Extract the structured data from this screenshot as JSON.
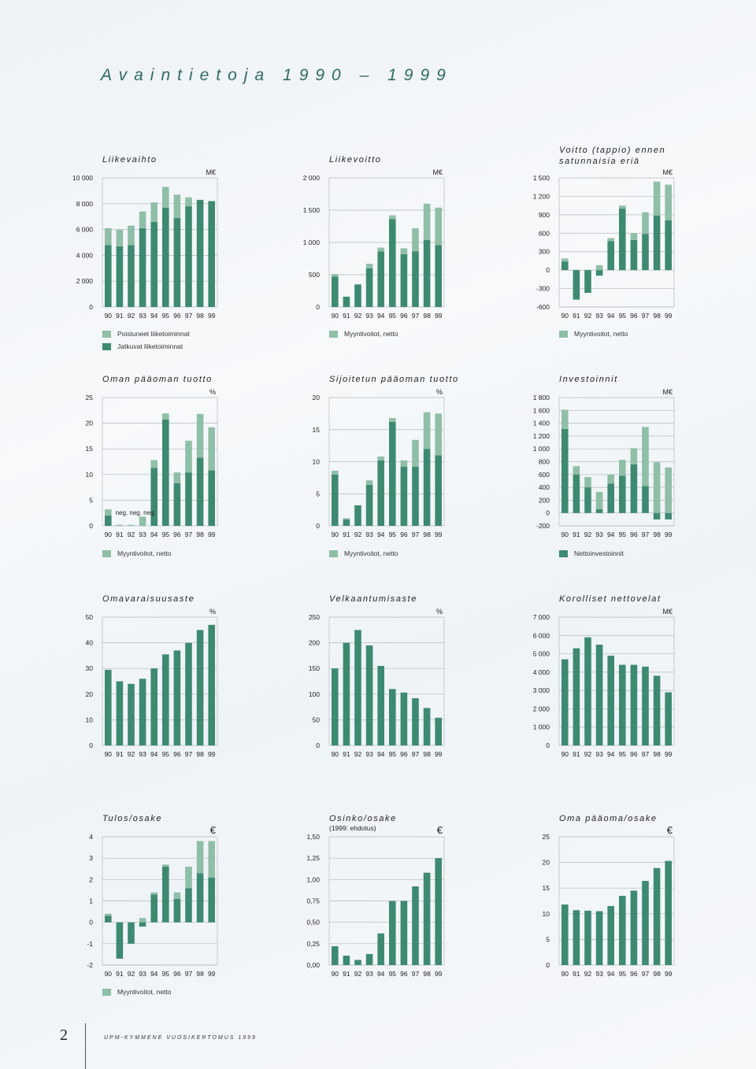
{
  "page": {
    "title": "Avaintietoja 1990 – 1999",
    "page_number": "2",
    "footer": "UPM-KYMMENE VUOSIKERTOMUS 1999"
  },
  "colors": {
    "dark": "#3d8a71",
    "light": "#8fbfa6",
    "grid": "#b5b9bc"
  },
  "legends": [
    {
      "id": "liikevaihto",
      "items": [
        {
          "label": "Poistuneet liiketoiminnat",
          "color": "#8fbfa6"
        },
        {
          "label": "Jatkuvat liiketoiminnat",
          "color": "#3d8a71"
        }
      ]
    },
    {
      "id": "liikevoitto",
      "items": [
        {
          "label": "Myyntivoitot, netto",
          "color": "#8fbfa6"
        }
      ]
    },
    {
      "id": "voitto",
      "items": [
        {
          "label": "Myyntivoitot, netto",
          "color": "#8fbfa6"
        }
      ]
    },
    {
      "id": "oman",
      "items": [
        {
          "label": "Myyntivoitot, netto",
          "color": "#8fbfa6"
        }
      ]
    },
    {
      "id": "sijoitetun",
      "items": [
        {
          "label": "Myyntivoitot, netto",
          "color": "#8fbfa6"
        }
      ]
    },
    {
      "id": "investoinnit",
      "items": [
        {
          "label": "Nettoinvestoinnit",
          "color": "#3d8a71"
        }
      ]
    },
    {
      "id": "tulos",
      "items": [
        {
          "label": "Myyntivoitot, netto",
          "color": "#8fbfa6"
        }
      ]
    }
  ],
  "chart_data": [
    {
      "id": "liikevaihto",
      "type": "bar",
      "title": "Liikevaihto",
      "unit": "M€",
      "ticks": [
        0,
        2000,
        4000,
        6000,
        8000,
        10000
      ],
      "tick_labels": [
        "0",
        "2 000",
        "4 000",
        "6 000",
        "8 000",
        "10 000"
      ],
      "ylim": [
        0,
        10000
      ],
      "grid": true,
      "categories": [
        "90",
        "91",
        "92",
        "93",
        "94",
        "95",
        "96",
        "97",
        "98",
        "99"
      ],
      "series": [
        {
          "name": "Jatkuvat liiketoiminnat",
          "values": [
            4800,
            4700,
            4800,
            6100,
            6600,
            7700,
            6900,
            7800,
            8300,
            8200
          ]
        },
        {
          "name": "Poistuneet liiketoiminnat",
          "values": [
            1300,
            1300,
            1500,
            1300,
            1500,
            1600,
            1800,
            700,
            0,
            0
          ]
        }
      ]
    },
    {
      "id": "liikevoitto",
      "type": "bar",
      "title": "Liikevoitto",
      "unit": "M€",
      "ticks": [
        0,
        500,
        1000,
        1500,
        2000
      ],
      "tick_labels": [
        "0",
        "500",
        "1 000",
        "1 500",
        "2 000"
      ],
      "ylim": [
        0,
        2000
      ],
      "grid": true,
      "categories": [
        "90",
        "91",
        "92",
        "93",
        "94",
        "95",
        "96",
        "97",
        "98",
        "99"
      ],
      "series": [
        {
          "values": [
            470,
            160,
            350,
            600,
            860,
            1360,
            820,
            860,
            1040,
            960
          ]
        },
        {
          "name": "Myyntivoitot, netto",
          "values": [
            40,
            0,
            0,
            70,
            60,
            60,
            90,
            360,
            560,
            580
          ]
        }
      ]
    },
    {
      "id": "voitto",
      "type": "bar",
      "title": "Voitto (tappio) ennen satunnaisia eriä",
      "unit": "M€",
      "ticks": [
        -600,
        -300,
        0,
        300,
        600,
        900,
        1200,
        1500
      ],
      "tick_labels": [
        "-600",
        "-300",
        "0",
        "300",
        "600",
        "900",
        "1 200",
        "1 500"
      ],
      "ylim": [
        -600,
        1500
      ],
      "grid": true,
      "categories": [
        "90",
        "91",
        "92",
        "93",
        "94",
        "95",
        "96",
        "97",
        "98",
        "99"
      ],
      "series": [
        {
          "values": [
            140,
            -480,
            -370,
            -90,
            470,
            1000,
            490,
            590,
            890,
            810
          ]
        },
        {
          "name": "Myyntivoitot, netto",
          "values": [
            50,
            0,
            0,
            80,
            50,
            50,
            110,
            350,
            550,
            580
          ]
        }
      ]
    },
    {
      "id": "oman",
      "type": "bar",
      "title": "Oman pääoman tuotto",
      "unit": "%",
      "ticks": [
        0,
        5,
        10,
        15,
        20,
        25
      ],
      "tick_labels": [
        "0",
        "5",
        "10",
        "15",
        "20",
        "25"
      ],
      "ylim": [
        0,
        25
      ],
      "grid": true,
      "categories": [
        "90",
        "91",
        "92",
        "93",
        "94",
        "95",
        "96",
        "97",
        "98",
        "99"
      ],
      "annotations": [
        "neg.",
        "neg.",
        "neg."
      ],
      "series": [
        {
          "values": [
            2,
            0,
            0,
            0,
            11.3,
            20.7,
            8.3,
            10.4,
            13.3,
            10.8
          ]
        },
        {
          "name": "Myyntivoitot, netto",
          "values": [
            1.2,
            0.2,
            0.2,
            1.8,
            1.5,
            1.2,
            2.1,
            6.2,
            8.5,
            8.4
          ]
        }
      ]
    },
    {
      "id": "sijoitetun",
      "type": "bar",
      "title": "Sijoitetun pääoman tuotto",
      "unit": "%",
      "ticks": [
        0,
        5,
        10,
        15,
        20
      ],
      "tick_labels": [
        "0",
        "5",
        "10",
        "15",
        "20"
      ],
      "ylim": [
        0,
        20
      ],
      "grid": true,
      "categories": [
        "90",
        "91",
        "92",
        "93",
        "94",
        "95",
        "96",
        "97",
        "98",
        "99"
      ],
      "series": [
        {
          "values": [
            8,
            1,
            3.2,
            6.4,
            10.2,
            16.2,
            9.2,
            9.2,
            12,
            11
          ]
        },
        {
          "name": "Myyntivoitot, netto",
          "values": [
            0.6,
            0.2,
            0,
            0.7,
            0.6,
            0.6,
            1,
            4.2,
            5.7,
            6.5
          ]
        }
      ]
    },
    {
      "id": "investoinnit",
      "type": "bar",
      "title": "Investoinnit",
      "unit": "M€",
      "ticks": [
        -200,
        0,
        200,
        400,
        600,
        800,
        1000,
        1200,
        1400,
        1600,
        1800
      ],
      "tick_labels": [
        "-200",
        "0",
        "200",
        "400",
        "600",
        "800",
        "1 000",
        "1 200",
        "1 400",
        "1 600",
        "1 800"
      ],
      "ylim": [
        -200,
        1800
      ],
      "grid": true,
      "categories": [
        "90",
        "91",
        "92",
        "93",
        "94",
        "95",
        "96",
        "97",
        "98",
        "99"
      ],
      "series": [
        {
          "name": "Nettoinvestoinnit",
          "values": [
            1310,
            600,
            400,
            60,
            460,
            580,
            760,
            420,
            -100,
            -100
          ]
        },
        {
          "values": [
            300,
            130,
            160,
            270,
            140,
            250,
            250,
            920,
            790,
            710
          ]
        }
      ]
    },
    {
      "id": "omavaraisuus",
      "type": "bar",
      "title": "Omavaraisuusaste",
      "unit": "%",
      "ticks": [
        0,
        10,
        20,
        30,
        40,
        50
      ],
      "tick_labels": [
        "0",
        "10",
        "20",
        "30",
        "40",
        "50"
      ],
      "ylim": [
        0,
        50
      ],
      "grid": true,
      "categories": [
        "90",
        "91",
        "92",
        "93",
        "94",
        "95",
        "96",
        "97",
        "98",
        "99"
      ],
      "series": [
        {
          "values": [
            29.5,
            25,
            24,
            26,
            30,
            35.5,
            37,
            40,
            45,
            47
          ]
        }
      ]
    },
    {
      "id": "velkaantumis",
      "type": "bar",
      "title": "Velkaantumisaste",
      "unit": "%",
      "ticks": [
        0,
        50,
        100,
        150,
        200,
        250
      ],
      "tick_labels": [
        "0",
        "50",
        "100",
        "150",
        "200",
        "250"
      ],
      "ylim": [
        0,
        250
      ],
      "grid": true,
      "categories": [
        "90",
        "91",
        "92",
        "93",
        "94",
        "95",
        "96",
        "97",
        "98",
        "99"
      ],
      "series": [
        {
          "values": [
            150,
            200,
            225,
            195,
            155,
            110,
            103,
            92,
            73,
            54
          ]
        }
      ]
    },
    {
      "id": "korolliset",
      "type": "bar",
      "title": "Korolliset nettovelat",
      "unit": "M€",
      "ticks": [
        0,
        1000,
        2000,
        3000,
        4000,
        5000,
        6000,
        7000
      ],
      "tick_labels": [
        "0",
        "1 000",
        "2 000",
        "3 000",
        "4 000",
        "5 000",
        "6 000",
        "7 000"
      ],
      "ylim": [
        0,
        7000
      ],
      "grid": true,
      "categories": [
        "90",
        "91",
        "92",
        "93",
        "94",
        "95",
        "96",
        "97",
        "98",
        "99"
      ],
      "series": [
        {
          "values": [
            4700,
            5300,
            5900,
            5500,
            4900,
            4400,
            4400,
            4300,
            3800,
            2900
          ]
        }
      ]
    },
    {
      "id": "tulos",
      "type": "bar",
      "title": "Tulos/osake",
      "unit": "€",
      "ticks": [
        -2,
        -1,
        0,
        1,
        2,
        3,
        4
      ],
      "tick_labels": [
        "-2",
        "-1",
        "0",
        "1",
        "2",
        "3",
        "4"
      ],
      "ylim": [
        -2,
        4
      ],
      "grid": true,
      "categories": [
        "90",
        "91",
        "92",
        "93",
        "94",
        "95",
        "96",
        "97",
        "98",
        "99"
      ],
      "series": [
        {
          "values": [
            0.3,
            -1.7,
            -1,
            -0.2,
            1.3,
            2.6,
            1.1,
            1.6,
            2.3,
            2.1
          ]
        },
        {
          "name": "Myyntivoitot, netto",
          "values": [
            0.1,
            0,
            0,
            0.2,
            0.1,
            0.1,
            0.3,
            1,
            1.5,
            1.7
          ]
        }
      ]
    },
    {
      "id": "osinko",
      "type": "bar",
      "title": "Osinko/osake",
      "subtitle": "(1999: ehdotus)",
      "unit": "€",
      "ticks": [
        0,
        0.25,
        0.5,
        0.75,
        1,
        1.25,
        1.5
      ],
      "tick_labels": [
        "0,00",
        "0,25",
        "0,50",
        "0,75",
        "1,00",
        "1,25",
        "1,50"
      ],
      "ylim": [
        0,
        1.5
      ],
      "grid": true,
      "categories": [
        "90",
        "91",
        "92",
        "93",
        "94",
        "95",
        "96",
        "97",
        "98",
        "99"
      ],
      "series": [
        {
          "values": [
            0.22,
            0.11,
            0.06,
            0.13,
            0.37,
            0.75,
            0.75,
            0.92,
            1.08,
            1.25
          ]
        }
      ]
    },
    {
      "id": "omapaaoma",
      "type": "bar",
      "title": "Oma pääoma/osake",
      "unit": "€",
      "ticks": [
        0,
        5,
        10,
        15,
        20,
        25
      ],
      "tick_labels": [
        "0",
        "5",
        "10",
        "15",
        "20",
        "25"
      ],
      "ylim": [
        0,
        25
      ],
      "grid": true,
      "categories": [
        "90",
        "91",
        "92",
        "93",
        "94",
        "95",
        "96",
        "97",
        "98",
        "99"
      ],
      "series": [
        {
          "values": [
            11.8,
            10.7,
            10.6,
            10.5,
            11.5,
            13.5,
            14.5,
            16.4,
            18.9,
            20.3
          ]
        }
      ]
    }
  ]
}
